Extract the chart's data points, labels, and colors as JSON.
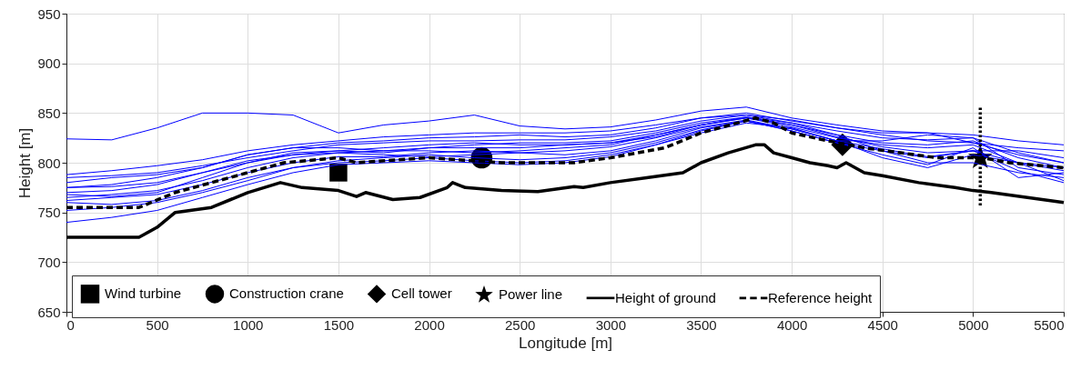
{
  "chart_data": {
    "type": "line",
    "xlabel": "Longitude [m]",
    "ylabel": "Height [m]",
    "xlim": [
      0,
      5500
    ],
    "ylim": [
      650,
      950
    ],
    "xticks": [
      0,
      500,
      1000,
      1500,
      2000,
      2500,
      3000,
      3500,
      4000,
      4500,
      5000,
      5500
    ],
    "yticks": [
      650,
      700,
      750,
      800,
      850,
      900,
      950
    ],
    "grid": true,
    "legend": "bottom",
    "series": [
      {
        "color": "#0000ff",
        "x": [
          0,
          250,
          500,
          750,
          1000,
          1250,
          1500,
          1750,
          2000,
          2250,
          2500,
          2750,
          3000,
          3250,
          3500,
          3750,
          4000,
          4250,
          4500,
          4750,
          5000,
          5250,
          5500
        ],
        "values": [
          824,
          823,
          835,
          850,
          850,
          848,
          830,
          838,
          842,
          848,
          837,
          834,
          836,
          843,
          852,
          856,
          845,
          838,
          832,
          830,
          828,
          822,
          818
        ]
      },
      {
        "color": "#0000ff",
        "x": [
          0,
          250,
          500,
          750,
          1000,
          1250,
          1500,
          1750,
          2000,
          2250,
          2500,
          2750,
          3000,
          3250,
          3500,
          3750,
          4000,
          4250,
          4500,
          4750,
          5000,
          5250,
          5500
        ],
        "values": [
          788,
          792,
          797,
          803,
          812,
          818,
          822,
          826,
          828,
          830,
          830,
          830,
          832,
          838,
          845,
          850,
          842,
          835,
          828,
          822,
          820,
          815,
          812
        ]
      },
      {
        "color": "#0000ff",
        "x": [
          0,
          250,
          500,
          750,
          1000,
          1250,
          1500,
          1750,
          2000,
          2250,
          2500,
          2750,
          3000,
          3250,
          3500,
          3750,
          4000,
          4250,
          4500,
          4750,
          5000,
          5250,
          5500
        ],
        "values": [
          785,
          787,
          790,
          797,
          805,
          812,
          818,
          820,
          822,
          822,
          823,
          823,
          826,
          832,
          842,
          848,
          840,
          832,
          825,
          823,
          825,
          810,
          800
        ]
      },
      {
        "color": "#0000ff",
        "x": [
          0,
          250,
          500,
          750,
          1000,
          1250,
          1500,
          1750,
          2000,
          2250,
          2500,
          2750,
          3000,
          3250,
          3500,
          3750,
          4000,
          4250,
          4500,
          4750,
          5000,
          5250,
          5500
        ],
        "values": [
          775,
          778,
          785,
          795,
          808,
          815,
          815,
          812,
          815,
          818,
          820,
          820,
          822,
          830,
          840,
          846,
          838,
          828,
          820,
          818,
          822,
          805,
          795
        ]
      },
      {
        "color": "#0000ff",
        "x": [
          0,
          250,
          500,
          750,
          1000,
          1250,
          1500,
          1750,
          2000,
          2250,
          2500,
          2750,
          3000,
          3250,
          3500,
          3750,
          4000,
          4250,
          4500,
          4750,
          5000,
          5250,
          5500
        ],
        "values": [
          770,
          772,
          778,
          790,
          802,
          808,
          810,
          812,
          812,
          810,
          812,
          815,
          818,
          828,
          838,
          845,
          836,
          825,
          818,
          815,
          818,
          800,
          792
        ]
      },
      {
        "color": "#0000ff",
        "x": [
          0,
          250,
          500,
          750,
          1000,
          1250,
          1500,
          1750,
          2000,
          2250,
          2500,
          2750,
          3000,
          3250,
          3500,
          3750,
          4000,
          4250,
          4500,
          4750,
          5000,
          5250,
          5500
        ],
        "values": [
          765,
          768,
          772,
          782,
          795,
          805,
          810,
          808,
          806,
          808,
          810,
          812,
          816,
          825,
          836,
          843,
          834,
          822,
          822,
          828,
          825,
          795,
          788
        ]
      },
      {
        "color": "#0000ff",
        "x": [
          0,
          250,
          500,
          750,
          1000,
          1250,
          1500,
          1750,
          2000,
          2250,
          2500,
          2750,
          3000,
          3250,
          3500,
          3750,
          4000,
          4250,
          4500,
          4750,
          5000,
          5250,
          5500
        ],
        "values": [
          762,
          765,
          768,
          778,
          790,
          800,
          806,
          806,
          810,
          812,
          810,
          808,
          812,
          822,
          835,
          842,
          832,
          820,
          812,
          805,
          812,
          812,
          805
        ]
      },
      {
        "color": "#0000ff",
        "x": [
          0,
          250,
          500,
          750,
          1000,
          1250,
          1500,
          1750,
          2000,
          2250,
          2500,
          2750,
          3000,
          3250,
          3500,
          3750,
          4000,
          4250,
          4500,
          4750,
          5000,
          5250,
          5500
        ],
        "values": [
          768,
          766,
          770,
          785,
          800,
          810,
          812,
          810,
          815,
          815,
          815,
          818,
          820,
          826,
          838,
          846,
          840,
          828,
          812,
          800,
          800,
          790,
          785
        ]
      },
      {
        "color": "#0000ff",
        "x": [
          0,
          250,
          500,
          750,
          1000,
          1250,
          1500,
          1750,
          2000,
          2250,
          2500,
          2750,
          3000,
          3250,
          3500,
          3750,
          4000,
          4250,
          4500,
          4750,
          5000,
          5250,
          5500
        ],
        "values": [
          775,
          776,
          780,
          790,
          800,
          808,
          812,
          815,
          818,
          820,
          818,
          818,
          820,
          828,
          838,
          845,
          838,
          826,
          816,
          810,
          812,
          792,
          780
        ]
      },
      {
        "color": "#0000ff",
        "x": [
          0,
          250,
          500,
          750,
          1000,
          1250,
          1500,
          1750,
          2000,
          2250,
          2500,
          2750,
          3000,
          3250,
          3500,
          3750,
          4000,
          4250,
          4500,
          4750,
          5000,
          5250,
          5500
        ],
        "values": [
          760,
          758,
          762,
          772,
          785,
          795,
          802,
          805,
          808,
          805,
          803,
          805,
          810,
          820,
          833,
          842,
          832,
          820,
          808,
          798,
          815,
          785,
          790
        ]
      },
      {
        "color": "#0000ff",
        "x": [
          0,
          250,
          500,
          750,
          1000,
          1250,
          1500,
          1750,
          2000,
          2250,
          2500,
          2750,
          3000,
          3250,
          3500,
          3750,
          4000,
          4250,
          4500,
          4750,
          5000,
          5250,
          5500
        ],
        "values": [
          740,
          745,
          752,
          765,
          778,
          790,
          798,
          800,
          802,
          800,
          798,
          800,
          806,
          818,
          830,
          840,
          835,
          822,
          805,
          795,
          808,
          800,
          782
        ]
      },
      {
        "color": "#0000ff",
        "x": [
          0,
          250,
          500,
          750,
          1000,
          1250,
          1500,
          1750,
          2000,
          2250,
          2500,
          2750,
          3000,
          3250,
          3500,
          3750,
          4000,
          4250,
          4500,
          4750,
          5000,
          5250,
          5500
        ],
        "values": [
          780,
          785,
          788,
          795,
          808,
          815,
          820,
          822,
          825,
          826,
          828,
          826,
          828,
          835,
          845,
          848,
          843,
          835,
          830,
          830,
          820,
          808,
          800
        ]
      },
      {
        "color": "#0000ff",
        "x": [
          0,
          250,
          500,
          750,
          1000,
          1250,
          1500,
          1750,
          2000,
          2250,
          2500,
          2750,
          3000,
          3250,
          3500,
          3750,
          4000,
          4250,
          4500,
          4750,
          5000,
          5250,
          5500
        ],
        "values": [
          752,
          755,
          760,
          770,
          782,
          795,
          800,
          802,
          805,
          802,
          800,
          802,
          808,
          818,
          832,
          842,
          834,
          822,
          814,
          806,
          812,
          800,
          795
        ]
      },
      {
        "name": "Wind turbine",
        "type": "scatter",
        "marker": "square",
        "color": "#000000",
        "x": [
          1500
        ],
        "values": [
          790
        ]
      },
      {
        "name": "Construction crane",
        "type": "scatter",
        "marker": "circle",
        "color": "#000000",
        "x": [
          2290
        ],
        "values": [
          805
        ]
      },
      {
        "name": "Cell tower",
        "type": "scatter",
        "marker": "diamond",
        "color": "#000000",
        "x": [
          4280
        ],
        "values": [
          818
        ]
      },
      {
        "name": "Power line",
        "type": "scatter",
        "marker": "star",
        "color": "#000000",
        "x": [
          5040
        ],
        "values": [
          805
        ]
      },
      {
        "name": "Height of ground",
        "color": "#000000",
        "line_style": "solid",
        "x": [
          0,
          400,
          430,
          500,
          600,
          800,
          1000,
          1180,
          1300,
          1500,
          1600,
          1650,
          1800,
          1950,
          2100,
          2130,
          2200,
          2400,
          2600,
          2800,
          2850,
          3000,
          3200,
          3400,
          3500,
          3650,
          3800,
          3850,
          3900,
          4000,
          4100,
          4200,
          4250,
          4300,
          4400,
          4500,
          4700,
          4900,
          5000,
          5100,
          5300,
          5500
        ],
        "values": [
          725,
          725,
          728,
          735,
          750,
          755,
          770,
          780,
          775,
          772,
          766,
          770,
          763,
          765,
          775,
          780,
          775,
          772,
          771,
          776,
          775,
          780,
          785,
          790,
          800,
          810,
          818,
          818,
          810,
          805,
          800,
          797,
          795,
          800,
          790,
          787,
          780,
          775,
          772,
          770,
          765,
          760
        ]
      },
      {
        "name": "Reference height",
        "color": "#000000",
        "line_style": "dashed",
        "x": [
          0,
          400,
          600,
          800,
          1000,
          1200,
          1500,
          1600,
          2000,
          2400,
          2800,
          3000,
          3300,
          3500,
          3800,
          3900,
          4000,
          4200,
          4400,
          4600,
          4800,
          5050,
          5200,
          5500
        ],
        "values": [
          755,
          755,
          770,
          780,
          790,
          800,
          805,
          800,
          805,
          800,
          800,
          805,
          815,
          830,
          845,
          840,
          830,
          822,
          815,
          810,
          805,
          805,
          800,
          795
        ]
      },
      {
        "color": "#000000",
        "line_style": "dotted",
        "x": [
          5040,
          5040
        ],
        "values": [
          757,
          857
        ]
      }
    ]
  }
}
